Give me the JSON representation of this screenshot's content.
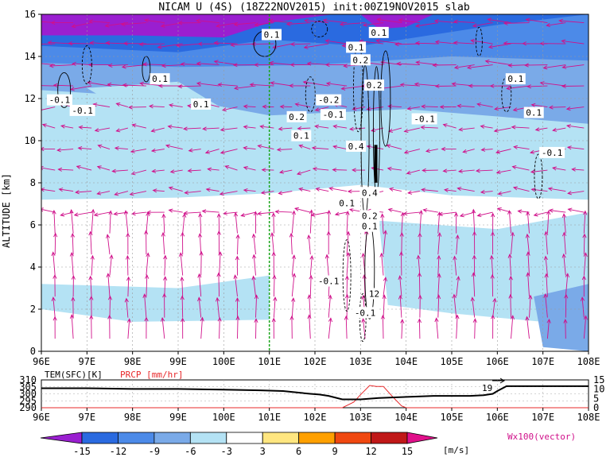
{
  "title": "NICAM U (4S) (18Z22NOV2015) init:00Z19NOV2015 slab",
  "chart_data": [
    {
      "type": "heatmap",
      "title": "NICAM U (4S) (18Z22NOV2015) init:00Z19NOV2015 slab",
      "ylabel": "ALTITUDE [km]",
      "xlabel": "",
      "x_ticks": [
        "96E",
        "97E",
        "98E",
        "99E",
        "100E",
        "101E",
        "102E",
        "103E",
        "104E",
        "105E",
        "106E",
        "107E",
        "108E"
      ],
      "y_ticks": [
        "0",
        "2",
        "4",
        "6",
        "8",
        "10",
        "12",
        "14",
        "16"
      ],
      "xlim": [
        96,
        108
      ],
      "ylim": [
        0,
        16
      ],
      "grid": true,
      "marker_line_lon": 101,
      "contour_labels": [
        {
          "text": "0.1",
          "lon": 101.05,
          "alt": 15.0
        },
        {
          "text": "0.1",
          "lon": 103.4,
          "alt": 15.1
        },
        {
          "text": "0.1",
          "lon": 98.6,
          "alt": 12.9
        },
        {
          "text": "0.1",
          "lon": 106.4,
          "alt": 12.9
        },
        {
          "text": "-0.1",
          "lon": 96.4,
          "alt": 11.9
        },
        {
          "text": "-0.1",
          "lon": 96.9,
          "alt": 11.4
        },
        {
          "text": "0.1",
          "lon": 99.5,
          "alt": 11.7
        },
        {
          "text": "-0.2",
          "lon": 102.3,
          "alt": 11.9
        },
        {
          "text": "-0.1",
          "lon": 102.4,
          "alt": 11.2
        },
        {
          "text": "0.2",
          "lon": 101.6,
          "alt": 11.1
        },
        {
          "text": "0.1",
          "lon": 101.7,
          "alt": 10.2
        },
        {
          "text": "-0.1",
          "lon": 104.4,
          "alt": 11.0
        },
        {
          "text": "0.1",
          "lon": 106.8,
          "alt": 11.3
        },
        {
          "text": "-0.1",
          "lon": 107.2,
          "alt": 9.4
        },
        {
          "text": "0.1",
          "lon": 102.9,
          "alt": 14.4
        },
        {
          "text": "0.2",
          "lon": 103.0,
          "alt": 13.8
        },
        {
          "text": "0.2",
          "lon": 103.3,
          "alt": 12.6
        },
        {
          "text": "0.4",
          "lon": 102.9,
          "alt": 9.7
        },
        {
          "text": "0.4",
          "lon": 103.2,
          "alt": 7.5
        },
        {
          "text": "0.1",
          "lon": 102.7,
          "alt": 7.0
        },
        {
          "text": "0.2",
          "lon": 103.2,
          "alt": 6.4
        },
        {
          "text": "0.1",
          "lon": 103.2,
          "alt": 5.9
        },
        {
          "text": "-0.1",
          "lon": 102.3,
          "alt": 3.3
        },
        {
          "text": "12",
          "lon": 103.3,
          "alt": 2.7
        },
        {
          "text": "-0.1",
          "lon": 103.1,
          "alt": 1.8
        }
      ]
    },
    {
      "type": "line",
      "title": "",
      "labels": [
        "TEM(SFC)[K]",
        "PRCP [mm/hr]"
      ],
      "y_ticks_left": [
        "290",
        "295",
        "300",
        "305",
        "310"
      ],
      "y_ticks_right": [
        "0",
        "5",
        "10",
        "15"
      ],
      "x_ticks": [
        "96E",
        "97E",
        "98E",
        "99E",
        "100E",
        "101E",
        "102E",
        "103E",
        "104E",
        "105E",
        "106E",
        "107E",
        "108E"
      ],
      "xlim": [
        96,
        108
      ],
      "ylim_left": [
        290,
        310
      ],
      "ylim_right": [
        0,
        15
      ],
      "inline_label": "19",
      "series": [
        {
          "name": "TEM(SFC)[K]",
          "color": "#000000",
          "x": [
            96.0,
            97.0,
            98.0,
            99.0,
            100.0,
            100.8,
            101.3,
            101.6,
            101.9,
            102.1,
            102.3,
            102.6,
            103.0,
            103.4,
            103.8,
            104.2,
            104.6,
            105.0,
            105.4,
            105.7,
            105.9,
            106.0,
            106.2,
            106.5,
            107.0,
            107.5,
            108.0
          ],
          "y": [
            304,
            304,
            303.5,
            303.5,
            303,
            302.5,
            302,
            301,
            300,
            299.5,
            298.5,
            296,
            296,
            297,
            297.5,
            298,
            298.5,
            298.5,
            298.5,
            299,
            300,
            302,
            305.5,
            305.5,
            305.5,
            305.5,
            305.5
          ]
        },
        {
          "name": "PRCP [mm/hr]",
          "color": "#e8282a",
          "x": [
            96.0,
            102.6,
            102.85,
            103.0,
            103.2,
            103.35,
            103.5,
            103.7,
            103.9,
            104.0,
            108.0
          ],
          "y": [
            0,
            0,
            3,
            7,
            12,
            11.5,
            11.5,
            6,
            1,
            0,
            0
          ]
        }
      ]
    }
  ],
  "colorbar": {
    "ticks": [
      "-15",
      "-12",
      "-9",
      "-6",
      "-3",
      "3",
      "6",
      "9",
      "12",
      "15"
    ],
    "colors": [
      "#9a1fd0",
      "#2a6ae0",
      "#4c8ae8",
      "#7aaae8",
      "#b4e2f4",
      "#ffffff",
      "#ffe680",
      "#ffa000",
      "#f04810",
      "#c01818",
      "#e0108a"
    ],
    "unit": "[m/s]"
  },
  "vector_label": "Wx100(vector)"
}
